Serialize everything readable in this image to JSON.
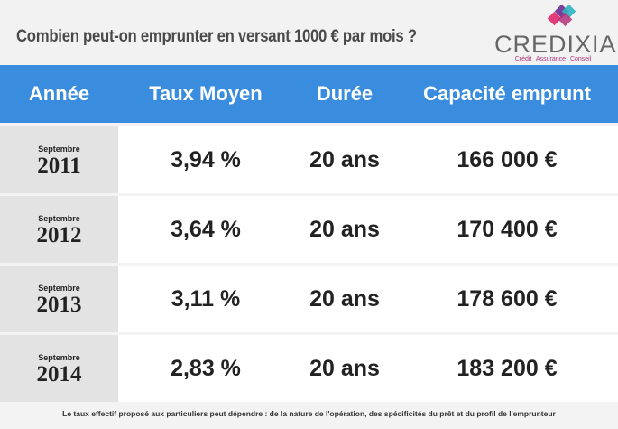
{
  "title": "Combien peut-on emprunter en versant 1000 € par mois ?",
  "logo": {
    "name": "CREDIXIA",
    "tagline": "Crédit Assurance Conseil",
    "colors": [
      "#e23b7a",
      "#2fb3c0",
      "#7a3f9a",
      "#a0a0a0"
    ]
  },
  "colors": {
    "header_bg": "#3a8dde",
    "year_cell_bg": "#e3e3e3",
    "row_bg": "#ffffff",
    "page_bg": "#f3f3f3"
  },
  "table": {
    "headers": [
      "Année",
      "Taux Moyen",
      "Durée",
      "Capacité emprunt"
    ],
    "rows": [
      {
        "month": "Septembre",
        "year": "2011",
        "rate": "3,94 %",
        "duration": "20 ans",
        "capacity": "166 000 €"
      },
      {
        "month": "Septembre",
        "year": "2012",
        "rate": "3,64 %",
        "duration": "20 ans",
        "capacity": "170 400 €"
      },
      {
        "month": "Septembre",
        "year": "2013",
        "rate": "3,11 %",
        "duration": "20 ans",
        "capacity": "178 600 €"
      },
      {
        "month": "Septembre",
        "year": "2014",
        "rate": "2,83 %",
        "duration": "20 ans",
        "capacity": "183 200 €"
      }
    ]
  },
  "footnote": "Le taux effectif proposé aux particuliers peut dépendre : de la nature de l'opération, des spécificités du prêt et du profil de l'emprunteur"
}
